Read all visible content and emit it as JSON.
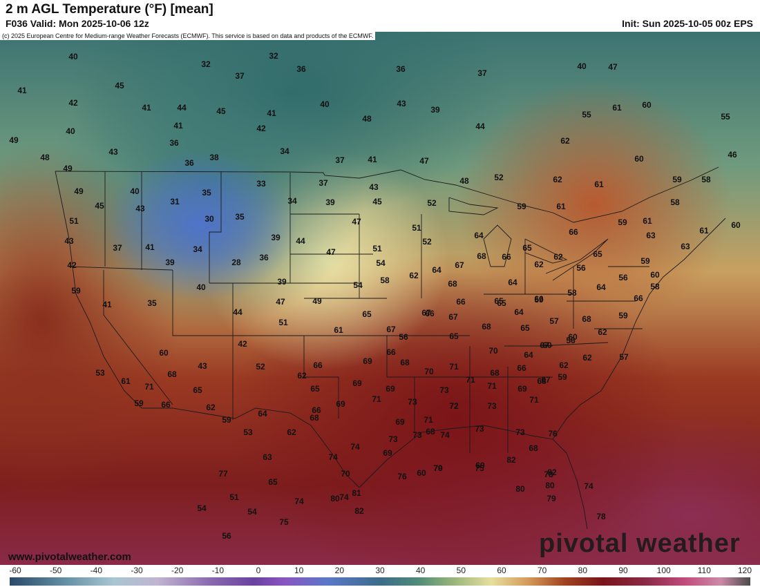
{
  "header": {
    "title": "2 m AGL Temperature (°F) [mean]",
    "valid": "F036 Valid: Mon 2025-10-06 12z",
    "init": "Init: Sun 2025-10-05 00z EPS"
  },
  "map": {
    "copyright": "(c) 2025 European Centre for Medium-range Weather Forecasts (ECMWF). This service is based on data and products of the ECMWF.",
    "website": "www.pivotalweather.com",
    "brand": "pivotal weather",
    "labels": [
      {
        "v": "40"
      },
      {
        "v": "32"
      },
      {
        "v": "32"
      },
      {
        "v": "36"
      },
      {
        "v": "36"
      },
      {
        "v": "37"
      },
      {
        "v": "40"
      },
      {
        "v": "47"
      },
      {
        "v": "41"
      },
      {
        "v": "45"
      },
      {
        "v": "37"
      },
      {
        "v": "42"
      },
      {
        "v": "41"
      },
      {
        "v": "44"
      },
      {
        "v": "45"
      },
      {
        "v": "41"
      },
      {
        "v": "40"
      },
      {
        "v": "43"
      },
      {
        "v": "39"
      },
      {
        "v": "61"
      },
      {
        "v": "60"
      },
      {
        "v": "40"
      },
      {
        "v": "41"
      },
      {
        "v": "42"
      },
      {
        "v": "48"
      },
      {
        "v": "44"
      },
      {
        "v": "55"
      },
      {
        "v": "55"
      },
      {
        "v": "49"
      },
      {
        "v": "43"
      },
      {
        "v": "36"
      },
      {
        "v": "34"
      },
      {
        "v": "62"
      },
      {
        "v": "46"
      },
      {
        "v": "48"
      },
      {
        "v": "36"
      },
      {
        "v": "38"
      },
      {
        "v": "37"
      },
      {
        "v": "41"
      },
      {
        "v": "47"
      },
      {
        "v": "60"
      },
      {
        "v": "49"
      },
      {
        "v": "49"
      },
      {
        "v": "40"
      },
      {
        "v": "33"
      },
      {
        "v": "37"
      },
      {
        "v": "43"
      },
      {
        "v": "48"
      },
      {
        "v": "52"
      },
      {
        "v": "62"
      },
      {
        "v": "61"
      },
      {
        "v": "59"
      },
      {
        "v": "58"
      },
      {
        "v": "45"
      },
      {
        "v": "43"
      },
      {
        "v": "31"
      },
      {
        "v": "35"
      },
      {
        "v": "34"
      },
      {
        "v": "39"
      },
      {
        "v": "45"
      },
      {
        "v": "52"
      },
      {
        "v": "59"
      },
      {
        "v": "61"
      },
      {
        "v": "58"
      },
      {
        "v": "51"
      },
      {
        "v": "30"
      },
      {
        "v": "35"
      },
      {
        "v": "47"
      },
      {
        "v": "51"
      },
      {
        "v": "59"
      },
      {
        "v": "61"
      },
      {
        "v": "60"
      },
      {
        "v": "43"
      },
      {
        "v": "37"
      },
      {
        "v": "41"
      },
      {
        "v": "34"
      },
      {
        "v": "39"
      },
      {
        "v": "44"
      },
      {
        "v": "47"
      },
      {
        "v": "51"
      },
      {
        "v": "52"
      },
      {
        "v": "64"
      },
      {
        "v": "66"
      },
      {
        "v": "63"
      },
      {
        "v": "61"
      },
      {
        "v": "42"
      },
      {
        "v": "39"
      },
      {
        "v": "28"
      },
      {
        "v": "36"
      },
      {
        "v": "54"
      },
      {
        "v": "64"
      },
      {
        "v": "67"
      },
      {
        "v": "68"
      },
      {
        "v": "66"
      },
      {
        "v": "65"
      },
      {
        "v": "62"
      },
      {
        "v": "65"
      },
      {
        "v": "59"
      },
      {
        "v": "63"
      },
      {
        "v": "62"
      },
      {
        "v": "40"
      },
      {
        "v": "39"
      },
      {
        "v": "54"
      },
      {
        "v": "58"
      },
      {
        "v": "62"
      },
      {
        "v": "68"
      },
      {
        "v": "64"
      },
      {
        "v": "65"
      },
      {
        "v": "66"
      },
      {
        "v": "56"
      },
      {
        "v": "56"
      },
      {
        "v": "60"
      },
      {
        "v": "59"
      },
      {
        "v": "41"
      },
      {
        "v": "35"
      },
      {
        "v": "47"
      },
      {
        "v": "49"
      },
      {
        "v": "66"
      },
      {
        "v": "65"
      },
      {
        "v": "59"
      },
      {
        "v": "58"
      },
      {
        "v": "64"
      },
      {
        "v": "66"
      },
      {
        "v": "58"
      },
      {
        "v": "44"
      },
      {
        "v": "51"
      },
      {
        "v": "61"
      },
      {
        "v": "65"
      },
      {
        "v": "67"
      },
      {
        "v": "66"
      },
      {
        "v": "67"
      },
      {
        "v": "68"
      },
      {
        "v": "64"
      },
      {
        "v": "57"
      },
      {
        "v": "68"
      },
      {
        "v": "59"
      },
      {
        "v": "67"
      },
      {
        "v": "65"
      },
      {
        "v": "56"
      },
      {
        "v": "60"
      },
      {
        "v": "62"
      },
      {
        "v": "65"
      },
      {
        "v": "67"
      },
      {
        "v": "56"
      },
      {
        "v": "42"
      },
      {
        "v": "60"
      },
      {
        "v": "70"
      },
      {
        "v": "64"
      },
      {
        "v": "60"
      },
      {
        "v": "62"
      },
      {
        "v": "57"
      },
      {
        "v": "43"
      },
      {
        "v": "52"
      },
      {
        "v": "66"
      },
      {
        "v": "69"
      },
      {
        "v": "66"
      },
      {
        "v": "68"
      },
      {
        "v": "70"
      },
      {
        "v": "71"
      },
      {
        "v": "62"
      },
      {
        "v": "53"
      },
      {
        "v": "61"
      },
      {
        "v": "71"
      },
      {
        "v": "68"
      },
      {
        "v": "62"
      },
      {
        "v": "69"
      },
      {
        "v": "69"
      },
      {
        "v": "71"
      },
      {
        "v": "68"
      },
      {
        "v": "66"
      },
      {
        "v": "68"
      },
      {
        "v": "59"
      },
      {
        "v": "65"
      },
      {
        "v": "65"
      },
      {
        "v": "66"
      },
      {
        "v": "71"
      },
      {
        "v": "69"
      },
      {
        "v": "59"
      },
      {
        "v": "66"
      },
      {
        "v": "62"
      },
      {
        "v": "69"
      },
      {
        "v": "73"
      },
      {
        "v": "73"
      },
      {
        "v": "72"
      },
      {
        "v": "71"
      },
      {
        "v": "69"
      },
      {
        "v": "71"
      },
      {
        "v": "59"
      },
      {
        "v": "64"
      },
      {
        "v": "68"
      },
      {
        "v": "68"
      },
      {
        "v": "72"
      },
      {
        "v": "73"
      },
      {
        "v": "71"
      },
      {
        "v": "67"
      },
      {
        "v": "53"
      },
      {
        "v": "62"
      },
      {
        "v": "73"
      },
      {
        "v": "73"
      },
      {
        "v": "74"
      },
      {
        "v": "73"
      },
      {
        "v": "73"
      },
      {
        "v": "76"
      },
      {
        "v": "68"
      },
      {
        "v": "63"
      },
      {
        "v": "74"
      },
      {
        "v": "74"
      },
      {
        "v": "69"
      },
      {
        "v": "60"
      },
      {
        "v": "70"
      },
      {
        "v": "75"
      },
      {
        "v": "74"
      },
      {
        "v": "82"
      },
      {
        "v": "82"
      },
      {
        "v": "80"
      },
      {
        "v": "78"
      },
      {
        "v": "77"
      },
      {
        "v": "65"
      },
      {
        "v": "70"
      },
      {
        "v": "74"
      },
      {
        "v": "76"
      },
      {
        "v": "79"
      },
      {
        "v": "69"
      },
      {
        "v": "78"
      },
      {
        "v": "51"
      },
      {
        "v": "74"
      },
      {
        "v": "80"
      },
      {
        "v": "81"
      },
      {
        "v": "79"
      },
      {
        "v": "80"
      },
      {
        "v": "54"
      },
      {
        "v": "54"
      },
      {
        "v": "75"
      },
      {
        "v": "82"
      },
      {
        "v": "56"
      }
    ]
  },
  "scale": {
    "ticks": [
      "-60",
      "-50",
      "-40",
      "-30",
      "-20",
      "-10",
      "0",
      "10",
      "20",
      "30",
      "40",
      "50",
      "60",
      "70",
      "80",
      "90",
      "100",
      "110",
      "120"
    ]
  },
  "colors": {
    "cold": "#4f73c9",
    "cool": "#3f7a78",
    "mild": "#e6df9e",
    "warm": "#a0421f",
    "hot": "#7a141a",
    "very_hot": "#8a2a48"
  }
}
